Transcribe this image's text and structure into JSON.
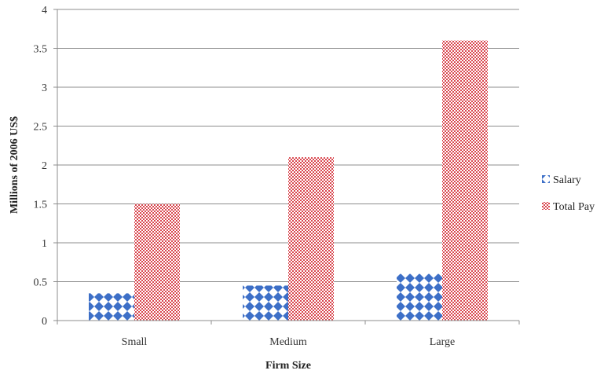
{
  "chart_data": {
    "type": "bar",
    "title": "",
    "xlabel": "Firm Size",
    "ylabel": "Millions of 2006 US$",
    "categories": [
      "Small",
      "Medium",
      "Large"
    ],
    "series": [
      {
        "name": "Salary",
        "values": [
          0.35,
          0.45,
          0.6
        ],
        "color": "#3d6fc7",
        "pattern": "diamonds"
      },
      {
        "name": "Total Pay",
        "values": [
          1.5,
          2.1,
          3.6
        ],
        "color": "#d9474f",
        "pattern": "checker"
      }
    ],
    "ylim": [
      0,
      4
    ],
    "yticks": [
      "0",
      "0.5",
      "1",
      "1.5",
      "2",
      "2.5",
      "3",
      "3.5",
      "4"
    ],
    "grid": true,
    "legend_position": "right"
  }
}
